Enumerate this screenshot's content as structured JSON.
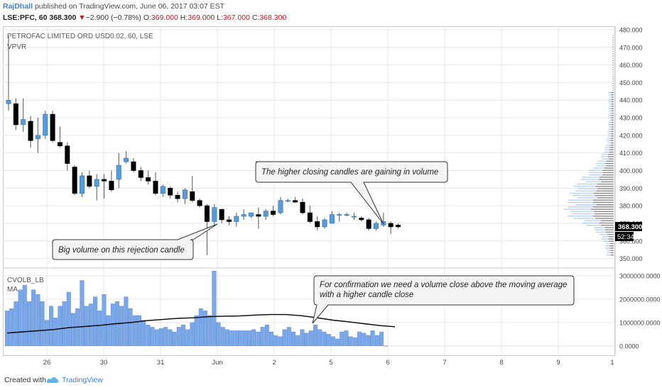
{
  "header": {
    "author": "RajDhall",
    "published_text": "published on TradingView.com, June 06, 2017 03:07 EST",
    "symbol": "LSE:PFC, 60",
    "last": "368.300",
    "change_arrow": "▼",
    "change": "−2.900 (−0.78%)",
    "o_label": "O:",
    "o_value": "369.000",
    "h_label": "H:",
    "h_value": "369.000",
    "l_label": "L:",
    "l_value": "367.000",
    "c_label": "C:",
    "c_value": "368.300"
  },
  "main_pane": {
    "title": "PETROFAC LIMITED ORD USD0.02, 60, LSE",
    "indicator": "VPVR",
    "price_tag": "368.300",
    "countdown_tag": "52:34",
    "annotations": [
      "The higher closing candles are gaining in volume",
      "Big volume on this rejection candle"
    ]
  },
  "volume_pane": {
    "indicator": "CVOLB_LB",
    "ma_label": "MA",
    "annotation": "For confirmation we need a volume close above the moving average with a higher candle close"
  },
  "footer": {
    "created_with": "Created with",
    "brand": "TradingView"
  },
  "colors": {
    "up": "#5b9bd5",
    "down": "#000000",
    "volume": "#7aa7e8",
    "grid": "#e6e6e6",
    "accent_red": "#c8141e",
    "brand_blue": "#3d7fd6"
  },
  "chart_data": [
    {
      "type": "candlestick",
      "title": "PETROFAC LIMITED ORD USD0.02, 60, LSE",
      "ylim": [
        345,
        482
      ],
      "y_ticks": [
        "350.000",
        "360.000",
        "370.000",
        "380.000",
        "390.000",
        "400.000",
        "410.000",
        "420.000",
        "430.000",
        "440.000",
        "450.000",
        "460.000",
        "470.000",
        "480.000"
      ],
      "x_tick_labels": [
        "26",
        "30",
        "31",
        "Jun",
        "2",
        "5",
        "6",
        "7",
        "8",
        "9",
        "1"
      ],
      "candles": [
        {
          "o": 438,
          "h": 476,
          "l": 434,
          "c": 440
        },
        {
          "o": 438,
          "h": 441,
          "l": 423,
          "c": 426
        },
        {
          "o": 426,
          "h": 441,
          "l": 422,
          "c": 429
        },
        {
          "o": 428,
          "h": 431,
          "l": 413,
          "c": 417
        },
        {
          "o": 418,
          "h": 430,
          "l": 410,
          "c": 420
        },
        {
          "o": 420,
          "h": 434,
          "l": 418,
          "c": 432
        },
        {
          "o": 432,
          "h": 434,
          "l": 416,
          "c": 417
        },
        {
          "o": 416,
          "h": 425,
          "l": 413,
          "c": 414
        },
        {
          "o": 414,
          "h": 416,
          "l": 400,
          "c": 404
        },
        {
          "o": 402,
          "h": 403,
          "l": 386,
          "c": 387
        },
        {
          "o": 387,
          "h": 399,
          "l": 385,
          "c": 397
        },
        {
          "o": 397,
          "h": 400,
          "l": 390,
          "c": 391
        },
        {
          "o": 391,
          "h": 398,
          "l": 383,
          "c": 395
        },
        {
          "o": 395,
          "h": 398,
          "l": 384,
          "c": 394
        },
        {
          "o": 394,
          "h": 400,
          "l": 388,
          "c": 389
        },
        {
          "o": 395,
          "h": 410,
          "l": 390,
          "c": 403
        },
        {
          "o": 405,
          "h": 411,
          "l": 404,
          "c": 407
        },
        {
          "o": 405,
          "h": 407,
          "l": 399,
          "c": 400
        },
        {
          "o": 400,
          "h": 402,
          "l": 394,
          "c": 396
        },
        {
          "o": 396,
          "h": 400,
          "l": 392,
          "c": 394
        },
        {
          "o": 394,
          "h": 399,
          "l": 386,
          "c": 387
        },
        {
          "o": 387,
          "h": 392,
          "l": 385,
          "c": 391
        },
        {
          "o": 390,
          "h": 391,
          "l": 384,
          "c": 386
        },
        {
          "o": 386,
          "h": 388,
          "l": 382,
          "c": 384
        },
        {
          "o": 384,
          "h": 390,
          "l": 381,
          "c": 389
        },
        {
          "o": 388,
          "h": 397,
          "l": 382,
          "c": 383
        },
        {
          "o": 383,
          "h": 384,
          "l": 379,
          "c": 380
        },
        {
          "o": 380,
          "h": 381,
          "l": 352,
          "c": 371
        },
        {
          "o": 371,
          "h": 381,
          "l": 369,
          "c": 379
        },
        {
          "o": 378,
          "h": 378,
          "l": 370,
          "c": 372
        },
        {
          "o": 372,
          "h": 374,
          "l": 369,
          "c": 371
        },
        {
          "o": 371,
          "h": 376,
          "l": 368,
          "c": 374
        },
        {
          "o": 374,
          "h": 378,
          "l": 372,
          "c": 375
        },
        {
          "o": 374,
          "h": 376,
          "l": 373,
          "c": 376
        },
        {
          "o": 375,
          "h": 379,
          "l": 367,
          "c": 374
        },
        {
          "o": 374,
          "h": 378,
          "l": 372,
          "c": 377
        },
        {
          "o": 377,
          "h": 380,
          "l": 374,
          "c": 375
        },
        {
          "o": 376,
          "h": 385,
          "l": 375,
          "c": 383
        },
        {
          "o": 383,
          "h": 384,
          "l": 382,
          "c": 383
        },
        {
          "o": 383,
          "h": 385,
          "l": 382,
          "c": 382
        },
        {
          "o": 382,
          "h": 384,
          "l": 375,
          "c": 376
        },
        {
          "o": 376,
          "h": 380,
          "l": 370,
          "c": 371
        },
        {
          "o": 371,
          "h": 374,
          "l": 366,
          "c": 368
        },
        {
          "o": 368,
          "h": 373,
          "l": 367,
          "c": 372
        },
        {
          "o": 370,
          "h": 377,
          "l": 370,
          "c": 375
        },
        {
          "o": 375,
          "h": 376,
          "l": 371,
          "c": 375
        },
        {
          "o": 375,
          "h": 376,
          "l": 374,
          "c": 375
        },
        {
          "o": 374,
          "h": 376,
          "l": 372,
          "c": 374
        },
        {
          "o": 373,
          "h": 374,
          "l": 371,
          "c": 372
        },
        {
          "o": 372,
          "h": 373,
          "l": 366,
          "c": 367
        },
        {
          "o": 367,
          "h": 371,
          "l": 366,
          "c": 370
        },
        {
          "o": 369,
          "h": 376,
          "l": 368,
          "c": 371
        },
        {
          "o": 370,
          "h": 371,
          "l": 364,
          "c": 368
        },
        {
          "o": 369,
          "h": 370,
          "l": 367,
          "c": 368
        }
      ]
    },
    {
      "type": "bar",
      "title": "CVOLB_LB",
      "ylim": [
        -400000,
        3300000
      ],
      "y_ticks": [
        "0.0000",
        "1000000.0000",
        "2000000.0000",
        "3000000.0000"
      ],
      "series": [
        {
          "name": "CVOLB_LB",
          "values": [
            1500000,
            1600000,
            1900000,
            2400000,
            2600000,
            1900000,
            2400000,
            2200000,
            1900000,
            1100000,
            1700000,
            1200000,
            1700000,
            1900000,
            2300000,
            1400000,
            1600000,
            2800000,
            1700000,
            1800000,
            2100000,
            1500000,
            2200000,
            1300000,
            1800000,
            1900000,
            1700000,
            2100000,
            1600000,
            1300000,
            1300000,
            1100000,
            900000,
            800000,
            700000,
            750000,
            800000,
            700000,
            600000,
            800000,
            900000,
            700000,
            1000000,
            1300000,
            1600000,
            1500000,
            1300000,
            3200000,
            1000000,
            800000,
            700000,
            650000,
            650000,
            650000,
            650000,
            650000,
            700000,
            600000,
            800000,
            900000,
            600000,
            450000,
            400000,
            700000,
            800000,
            600000,
            450000,
            700000,
            550000,
            650000,
            900000,
            700000,
            600000,
            500000,
            400000,
            300000,
            600000,
            650000,
            400000,
            350000,
            600000,
            550000,
            450000,
            650000,
            450000,
            600000,
            0
          ]
        },
        {
          "name": "MA",
          "values": [
            550000,
            600000,
            650000,
            700000,
            780000,
            830000,
            880000,
            950000,
            1000000,
            1080000,
            1130000,
            1180000,
            1200000,
            1250000,
            1270000,
            1280000,
            1320000,
            1340000,
            1340000,
            1290000,
            1200000,
            1100000,
            1030000,
            950000,
            870000,
            820000
          ]
        }
      ]
    }
  ]
}
